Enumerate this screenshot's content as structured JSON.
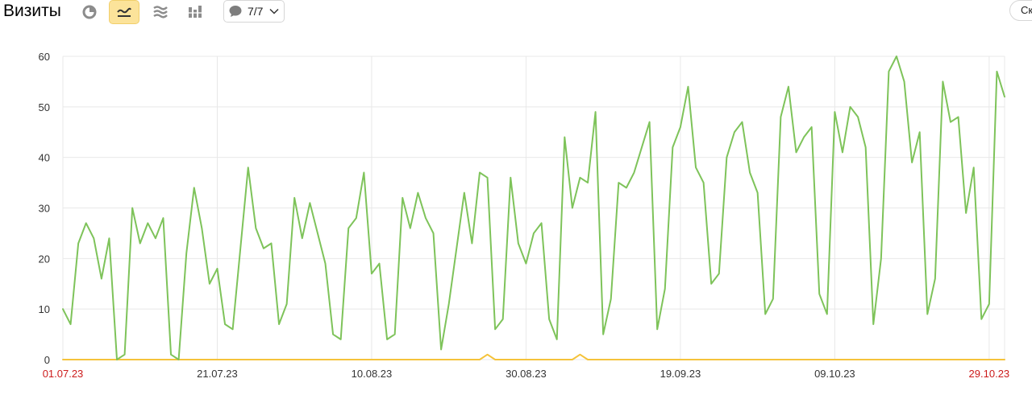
{
  "header": {
    "title": "Визиты",
    "comments_count": "7/7",
    "right_button_label": "Ск"
  },
  "toolbar_icons": [
    "pie-chart-icon",
    "line-chart-icon",
    "area-chart-icon",
    "bar-chart-icon"
  ],
  "colors": {
    "series_visits": "#7ec35a",
    "series_robots": "#f5c33b",
    "weekend_tick": "#cc1b1b",
    "active_button": "#fce39a"
  },
  "chart_data": {
    "type": "line",
    "title": "",
    "xlabel": "",
    "ylabel": "",
    "ylim": [
      0,
      60
    ],
    "y_ticks": [
      0,
      10,
      20,
      30,
      40,
      50,
      60
    ],
    "x_ticks": [
      {
        "label": "01.07.23",
        "index": 0,
        "weekend": true
      },
      {
        "label": "21.07.23",
        "index": 20,
        "weekend": false
      },
      {
        "label": "10.08.23",
        "index": 40,
        "weekend": false
      },
      {
        "label": "30.08.23",
        "index": 60,
        "weekend": false
      },
      {
        "label": "19.09.23",
        "index": 80,
        "weekend": false
      },
      {
        "label": "09.10.23",
        "index": 100,
        "weekend": false
      },
      {
        "label": "29.10.23",
        "index": 120,
        "weekend": true
      }
    ],
    "x_start": "01.07.23",
    "x_end": "31.10.23",
    "grid": true,
    "series": [
      {
        "values": [
          10,
          7,
          23,
          27,
          24,
          16,
          24,
          0,
          1,
          30,
          23,
          27,
          24,
          28,
          1,
          0,
          21,
          34,
          26,
          15,
          18,
          7,
          6,
          22,
          38,
          26,
          22,
          23,
          7,
          11,
          32,
          24,
          31,
          25,
          19,
          5,
          4,
          26,
          28,
          37,
          17,
          19,
          4,
          5,
          32,
          26,
          33,
          28,
          25,
          2,
          11,
          22,
          33,
          23,
          37,
          36,
          6,
          8,
          36,
          23,
          19,
          25,
          27,
          8,
          4,
          44,
          30,
          36,
          35,
          49,
          5,
          12,
          35,
          34,
          37,
          42,
          47,
          6,
          14,
          42,
          46,
          54,
          38,
          35,
          15,
          17,
          40,
          45,
          47,
          37,
          33,
          9,
          12,
          48,
          54,
          41,
          44,
          46,
          13,
          9,
          49,
          41,
          50,
          48,
          42,
          7,
          20,
          57,
          60,
          55,
          39,
          45,
          9,
          16,
          55,
          47,
          48,
          29,
          38,
          8,
          11,
          57,
          52
        ]
      },
      {
        "values": [
          0,
          0,
          0,
          0,
          0,
          0,
          0,
          0,
          0,
          0,
          0,
          0,
          0,
          0,
          0,
          0,
          0,
          0,
          0,
          0,
          0,
          0,
          0,
          0,
          0,
          0,
          0,
          0,
          0,
          0,
          0,
          0,
          0,
          0,
          0,
          0,
          0,
          0,
          0,
          0,
          0,
          0,
          0,
          0,
          0,
          0,
          0,
          0,
          0,
          0,
          0,
          0,
          0,
          0,
          0,
          1,
          0,
          0,
          0,
          0,
          0,
          0,
          0,
          0,
          0,
          0,
          0,
          1,
          0,
          0,
          0,
          0,
          0,
          0,
          0,
          0,
          0,
          0,
          0,
          0,
          0,
          0,
          0,
          0,
          0,
          0,
          0,
          0,
          0,
          0,
          0,
          0,
          0,
          0,
          0,
          0,
          0,
          0,
          0,
          0,
          0,
          0,
          0,
          0,
          0,
          0,
          0,
          0,
          0,
          0,
          0,
          0,
          0,
          0,
          0,
          0,
          0,
          0,
          0,
          0,
          0,
          0,
          0
        ]
      }
    ]
  }
}
